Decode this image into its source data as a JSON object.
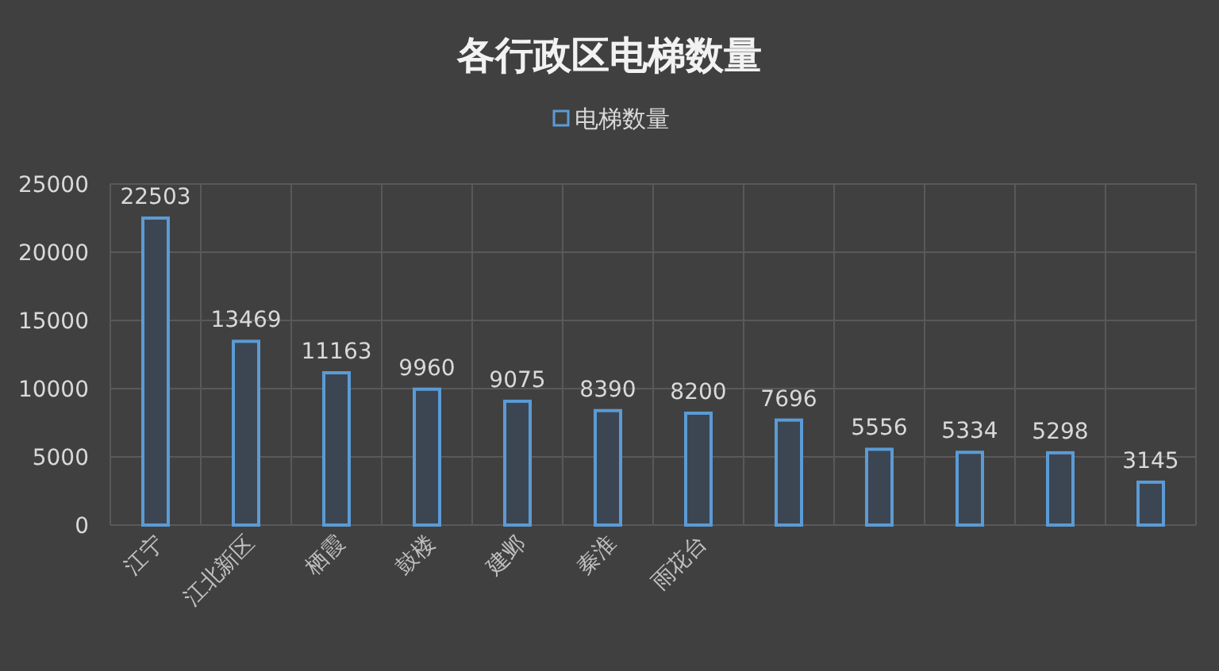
{
  "chart_data": {
    "type": "bar",
    "title": "各行政区电梯数量",
    "categories": [
      "江宁",
      "江北新区",
      "栖霞",
      "鼓楼",
      "建邺",
      "秦淮",
      "雨花台",
      null,
      null,
      null,
      null,
      null
    ],
    "series": [
      {
        "name": "电梯数量",
        "color": "#5b9bd5",
        "values": [
          22503,
          13469,
          11163,
          9960,
          9075,
          8390,
          8200,
          7696,
          5556,
          5334,
          5298,
          3145
        ]
      }
    ],
    "ylim": [
      0,
      25000
    ],
    "yticks": [
      0,
      5000,
      10000,
      15000,
      20000,
      25000
    ],
    "grid": true,
    "legend": "top",
    "data_labels": true
  }
}
